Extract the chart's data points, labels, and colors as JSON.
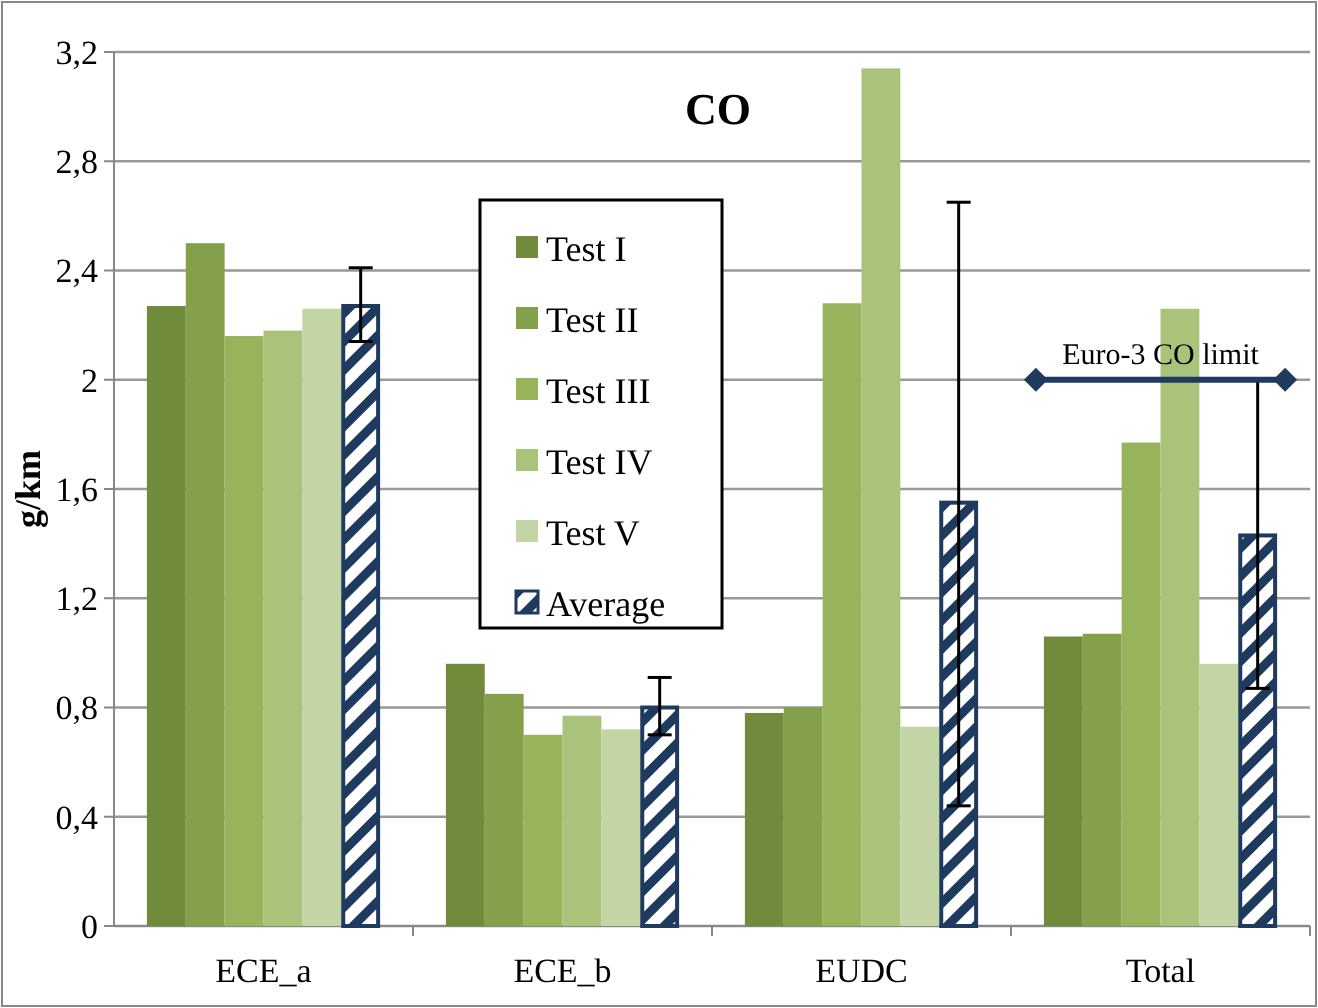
{
  "chart_data": {
    "type": "bar",
    "title": "CO",
    "ylabel": "g/km",
    "categories": [
      "ECE_a",
      "ECE_b",
      "EUDC",
      "Total"
    ],
    "series": [
      {
        "name": "Test I",
        "color": "#718b3d",
        "values": [
          2.27,
          0.96,
          0.78,
          1.06
        ]
      },
      {
        "name": "Test II",
        "color": "#84a04a",
        "values": [
          2.5,
          0.85,
          0.8,
          1.07
        ]
      },
      {
        "name": "Test III",
        "color": "#97b45a",
        "values": [
          2.16,
          0.7,
          2.28,
          1.77
        ]
      },
      {
        "name": "Test IV",
        "color": "#a9c47a",
        "values": [
          2.18,
          0.77,
          3.14,
          2.26
        ]
      },
      {
        "name": "Test V",
        "color": "#c3d4a5",
        "values": [
          2.26,
          0.72,
          0.73,
          0.96
        ]
      },
      {
        "name": "Average",
        "color": "#1f3a5f",
        "values": [
          2.27,
          0.8,
          1.55,
          1.43
        ],
        "errors": [
          [
            2.14,
            2.41
          ],
          [
            0.7,
            0.91
          ],
          [
            0.44,
            2.65
          ],
          [
            0.87,
            2.0
          ]
        ]
      }
    ],
    "ylim": [
      0,
      3.2
    ],
    "yticks": [
      0,
      {
        "value": 0.4,
        "label": "0,4"
      },
      {
        "value": 0.8,
        "label": "0,8"
      },
      {
        "value": 1.2,
        "label": "1,2"
      },
      {
        "value": 1.6,
        "label": "1,6"
      },
      {
        "value": 2,
        "label": "2"
      },
      {
        "value": 2.4,
        "label": "2,4"
      },
      {
        "value": 2.8,
        "label": "2,8"
      },
      {
        "value": 3.2,
        "label": "3,2"
      }
    ],
    "ref_lines": [
      {
        "axis": "y",
        "value": 2,
        "label": "Euro-3 CO limit",
        "color": "#1f3a5f"
      }
    ],
    "grid": "y",
    "legend": "top"
  }
}
